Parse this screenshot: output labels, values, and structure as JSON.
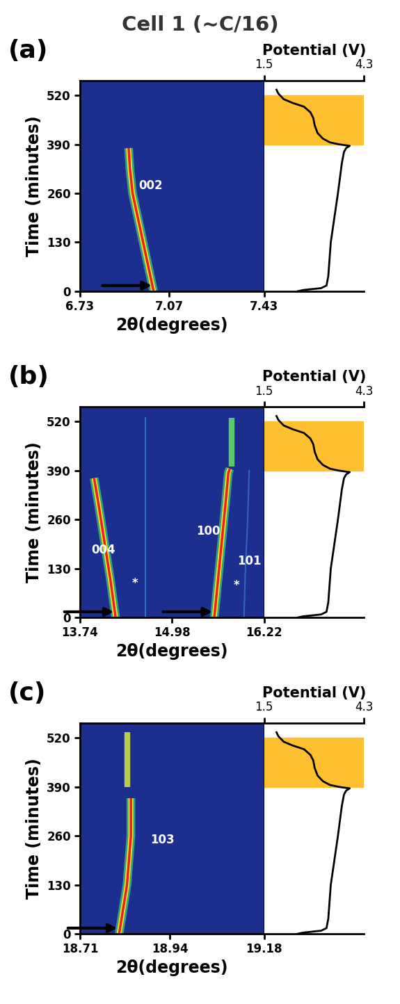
{
  "title": "Cell 1 (~C/16)",
  "potential": {
    "xlabel": "Potential (V)",
    "xlim": [
      1.5,
      4.3
    ],
    "xticks": [
      1.5,
      4.3
    ],
    "color": "#000000",
    "time": [
      0,
      3,
      8,
      15,
      40,
      130,
      260,
      340,
      370,
      380,
      386,
      390,
      395,
      405,
      420,
      440,
      460,
      475,
      490,
      500,
      510,
      525,
      535
    ],
    "values": [
      2.45,
      2.6,
      3.1,
      3.25,
      3.3,
      3.37,
      3.57,
      3.68,
      3.74,
      3.8,
      3.9,
      3.6,
      3.35,
      3.15,
      3.0,
      2.92,
      2.88,
      2.8,
      2.62,
      2.3,
      2.05,
      1.9,
      1.85
    ],
    "shaded_range": [
      390,
      520
    ]
  },
  "chart_data": [
    {
      "type": "line",
      "panel_label": "(a)",
      "xlabel": "2θ(degrees)",
      "ylabel": "Time (minutes)",
      "xlim": [
        6.73,
        7.43
      ],
      "xticks": [
        6.73,
        7.07,
        7.43
      ],
      "ylim": [
        0,
        560
      ],
      "yticks": [
        0,
        130,
        260,
        390,
        520
      ],
      "series": [
        {
          "color": "#e8231c",
          "x": [
            7.01,
            6.99,
            6.97,
            6.95,
            6.93,
            6.92,
            6.915
          ],
          "y": [
            0,
            65,
            130,
            195,
            260,
            325,
            380
          ]
        }
      ],
      "annotations": [
        {
          "text": "002",
          "x": 7.0,
          "y": 280
        }
      ]
    },
    {
      "type": "line",
      "panel_label": "(b)",
      "xlabel": "2θ(degrees)",
      "ylabel": "Time (minutes)",
      "xlim": [
        13.74,
        16.22
      ],
      "xticks": [
        13.74,
        14.98,
        16.22
      ],
      "ylim": [
        0,
        560
      ],
      "yticks": [
        0,
        130,
        260,
        390,
        520
      ],
      "series": [
        {
          "color": "#3a7fd8",
          "x": [
            14.62,
            14.62
          ],
          "y": [
            0,
            530
          ]
        },
        {
          "color": "#3a6fd0",
          "x": [
            15.95,
            15.97,
            16.0,
            16.02
          ],
          "y": [
            0,
            130,
            260,
            390
          ]
        },
        {
          "color": "#e8231c",
          "x": [
            14.22,
            14.15,
            14.07,
            13.99,
            13.93
          ],
          "y": [
            0,
            100,
            200,
            300,
            370
          ]
        },
        {
          "color": "#e8231c",
          "x": [
            15.55,
            15.6,
            15.65,
            15.7,
            15.74,
            15.76
          ],
          "y": [
            0,
            100,
            200,
            300,
            385,
            395
          ]
        },
        {
          "color": "#5fdc6a",
          "x": [
            15.78,
            15.78
          ],
          "y": [
            400,
            530
          ]
        }
      ],
      "annotations": [
        {
          "text": "004",
          "x": 14.05,
          "y": 180
        },
        {
          "text": "100",
          "x": 15.47,
          "y": 230
        },
        {
          "text": "101",
          "x": 16.02,
          "y": 150
        },
        {
          "text": "*",
          "x": 14.48,
          "y": 90
        },
        {
          "text": "*",
          "x": 15.85,
          "y": 85
        }
      ]
    },
    {
      "type": "line",
      "panel_label": "(c)",
      "xlabel": "2θ(degrees)",
      "ylabel": "Time (minutes)",
      "xlim": [
        18.71,
        19.18
      ],
      "xticks": [
        18.71,
        18.94,
        19.18
      ],
      "ylim": [
        0,
        560
      ],
      "yticks": [
        0,
        130,
        260,
        390,
        520
      ],
      "series": [
        {
          "color": "#e8231c",
          "x": [
            18.81,
            18.82,
            18.83,
            18.835,
            18.84,
            18.84
          ],
          "y": [
            0,
            65,
            130,
            195,
            260,
            360
          ]
        },
        {
          "color": "#c8e040",
          "x": [
            18.83,
            18.83
          ],
          "y": [
            390,
            535
          ]
        }
      ],
      "annotations": [
        {
          "text": "103",
          "x": 18.92,
          "y": 250
        }
      ]
    }
  ]
}
